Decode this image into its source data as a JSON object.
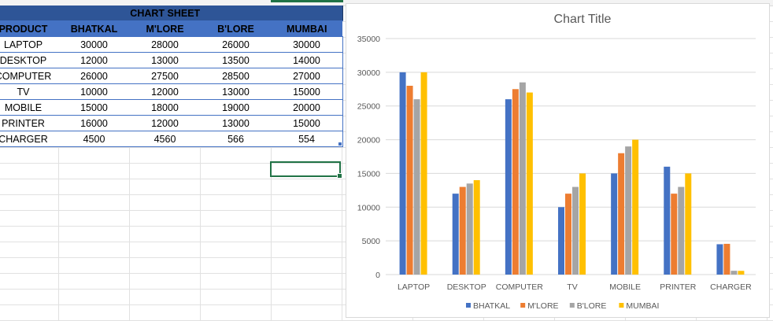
{
  "sheet": {
    "title": "CHART SHEET",
    "headers": [
      "PRODUCT",
      "BHATKAL",
      "M'LORE",
      "B'LORE",
      "MUMBAI"
    ],
    "rows": [
      [
        "LAPTOP",
        "30000",
        "28000",
        "26000",
        "30000"
      ],
      [
        "DESKTOP",
        "12000",
        "13000",
        "13500",
        "14000"
      ],
      [
        "COMPUTER",
        "26000",
        "27500",
        "28500",
        "27000"
      ],
      [
        "TV",
        "10000",
        "12000",
        "13000",
        "15000"
      ],
      [
        "MOBILE",
        "15000",
        "18000",
        "19000",
        "20000"
      ],
      [
        "PRINTER",
        "16000",
        "12000",
        "13000",
        "15000"
      ],
      [
        "CHARGER",
        "4500",
        "4560",
        "566",
        "554"
      ]
    ]
  },
  "chart_data": {
    "type": "bar",
    "title": "Chart Title",
    "categories": [
      "LAPTOP",
      "DESKTOP",
      "COMPUTER",
      "TV",
      "MOBILE",
      "PRINTER",
      "CHARGER"
    ],
    "series": [
      {
        "name": "BHATKAL",
        "color": "#4472c4",
        "values": [
          30000,
          12000,
          26000,
          10000,
          15000,
          16000,
          4500
        ]
      },
      {
        "name": "M'LORE",
        "color": "#ed7d31",
        "values": [
          28000,
          13000,
          27500,
          12000,
          18000,
          12000,
          4560
        ]
      },
      {
        "name": "B'LORE",
        "color": "#a5a5a5",
        "values": [
          26000,
          13500,
          28500,
          13000,
          19000,
          13000,
          566
        ]
      },
      {
        "name": "MUMBAI",
        "color": "#ffc000",
        "values": [
          30000,
          14000,
          27000,
          15000,
          20000,
          15000,
          554
        ]
      }
    ],
    "yticks": [
      "0",
      "5000",
      "10000",
      "15000",
      "20000",
      "25000",
      "30000",
      "35000"
    ],
    "ylim": [
      0,
      35000
    ],
    "grid": true,
    "legend": "bottom"
  }
}
